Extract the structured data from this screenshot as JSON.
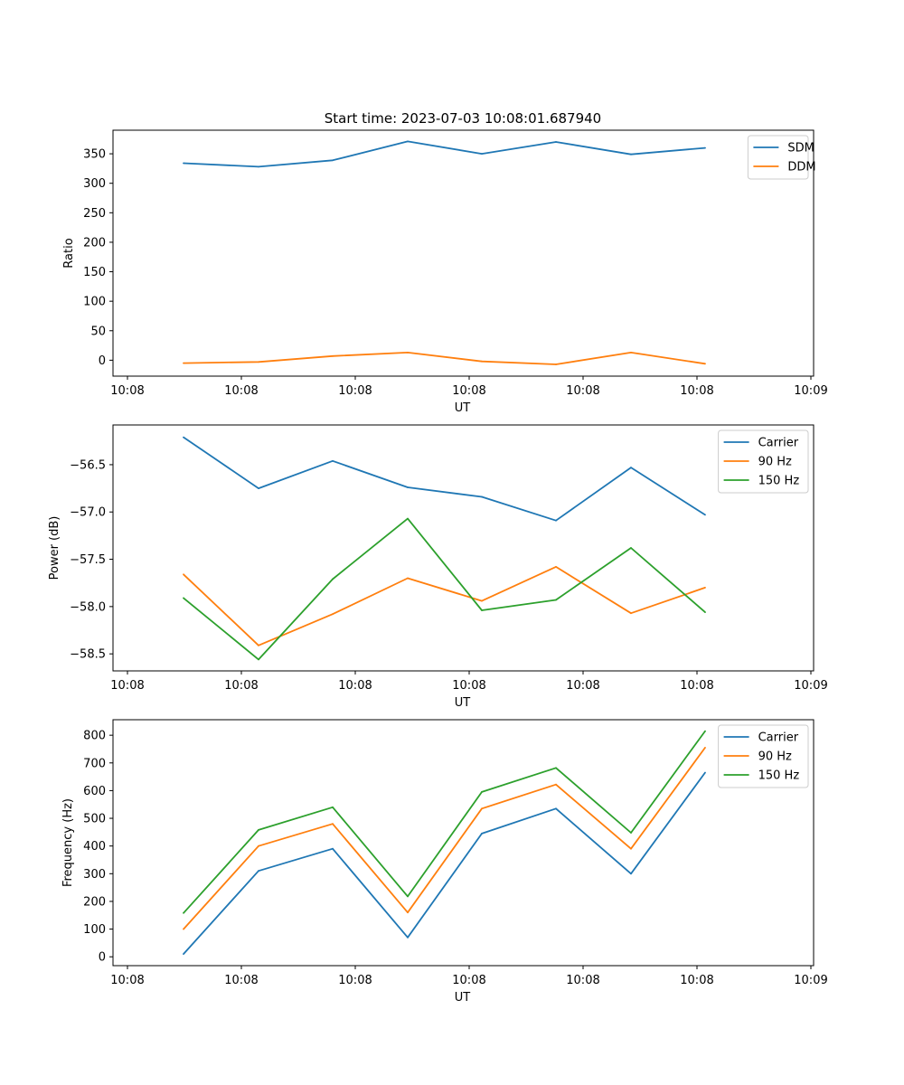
{
  "figure_title": "Start time: 2023-07-03 10:08:01.687940",
  "colors": {
    "blue": "#1f77b4",
    "orange": "#ff7f0e",
    "green": "#2ca02c"
  },
  "chart_data": [
    {
      "type": "line",
      "title": "Start time: 2023-07-03 10:08:01.687940",
      "xlabel": "UT",
      "ylabel": "Ratio",
      "x_tick_labels": [
        "10:08",
        "10:08",
        "10:08",
        "10:08",
        "10:08",
        "10:08",
        "10:09"
      ],
      "y_ticks": [
        0,
        50,
        100,
        150,
        200,
        250,
        300,
        350
      ],
      "y_tick_labels": [
        "0",
        "50",
        "100",
        "150",
        "200",
        "250",
        "300",
        "350"
      ],
      "ylim": [
        -27,
        390
      ],
      "legend_loc": "top-right",
      "series": [
        {
          "name": "SDM",
          "color": "#1f77b4",
          "values": [
            334,
            328,
            339,
            371,
            350,
            370,
            349,
            360
          ]
        },
        {
          "name": "DDM",
          "color": "#ff7f0e",
          "values": [
            -5,
            -3,
            7,
            13,
            -2,
            -7,
            13,
            -6
          ]
        }
      ]
    },
    {
      "type": "line",
      "title": "",
      "xlabel": "UT",
      "ylabel": "Power (dB)",
      "x_tick_labels": [
        "10:08",
        "10:08",
        "10:08",
        "10:08",
        "10:08",
        "10:08",
        "10:09"
      ],
      "y_ticks": [
        -58.5,
        -58.0,
        -57.5,
        -57.0,
        -56.5
      ],
      "y_tick_labels": [
        "−58.5",
        "−58.0",
        "−57.5",
        "−57.0",
        "−56.5"
      ],
      "ylim": [
        -58.68,
        -56.08
      ],
      "legend_loc": "top-right",
      "series": [
        {
          "name": "Carrier",
          "color": "#1f77b4",
          "values": [
            -56.21,
            -56.75,
            -56.46,
            -56.74,
            -56.84,
            -57.09,
            -56.53,
            -57.03
          ]
        },
        {
          "name": "90 Hz",
          "color": "#ff7f0e",
          "values": [
            -57.66,
            -58.41,
            -58.08,
            -57.7,
            -57.94,
            -57.58,
            -58.07,
            -57.8
          ]
        },
        {
          "name": "150 Hz",
          "color": "#2ca02c",
          "values": [
            -57.91,
            -58.56,
            -57.71,
            -57.07,
            -58.04,
            -57.93,
            -57.38,
            -58.06
          ]
        }
      ]
    },
    {
      "type": "line",
      "title": "",
      "xlabel": "UT",
      "ylabel": "Frequency (Hz)",
      "x_tick_labels": [
        "10:08",
        "10:08",
        "10:08",
        "10:08",
        "10:08",
        "10:08",
        "10:09"
      ],
      "y_ticks": [
        0,
        100,
        200,
        300,
        400,
        500,
        600,
        700,
        800
      ],
      "y_tick_labels": [
        "0",
        "100",
        "200",
        "300",
        "400",
        "500",
        "600",
        "700",
        "800"
      ],
      "ylim": [
        -32,
        856
      ],
      "legend_loc": "top-right",
      "series": [
        {
          "name": "Carrier",
          "color": "#1f77b4",
          "values": [
            10,
            310,
            390,
            70,
            445,
            535,
            300,
            665
          ]
        },
        {
          "name": "90 Hz",
          "color": "#ff7f0e",
          "values": [
            100,
            400,
            480,
            160,
            535,
            622,
            390,
            755
          ]
        },
        {
          "name": "150 Hz",
          "color": "#2ca02c",
          "values": [
            158,
            458,
            540,
            218,
            595,
            682,
            448,
            815
          ]
        }
      ]
    }
  ]
}
